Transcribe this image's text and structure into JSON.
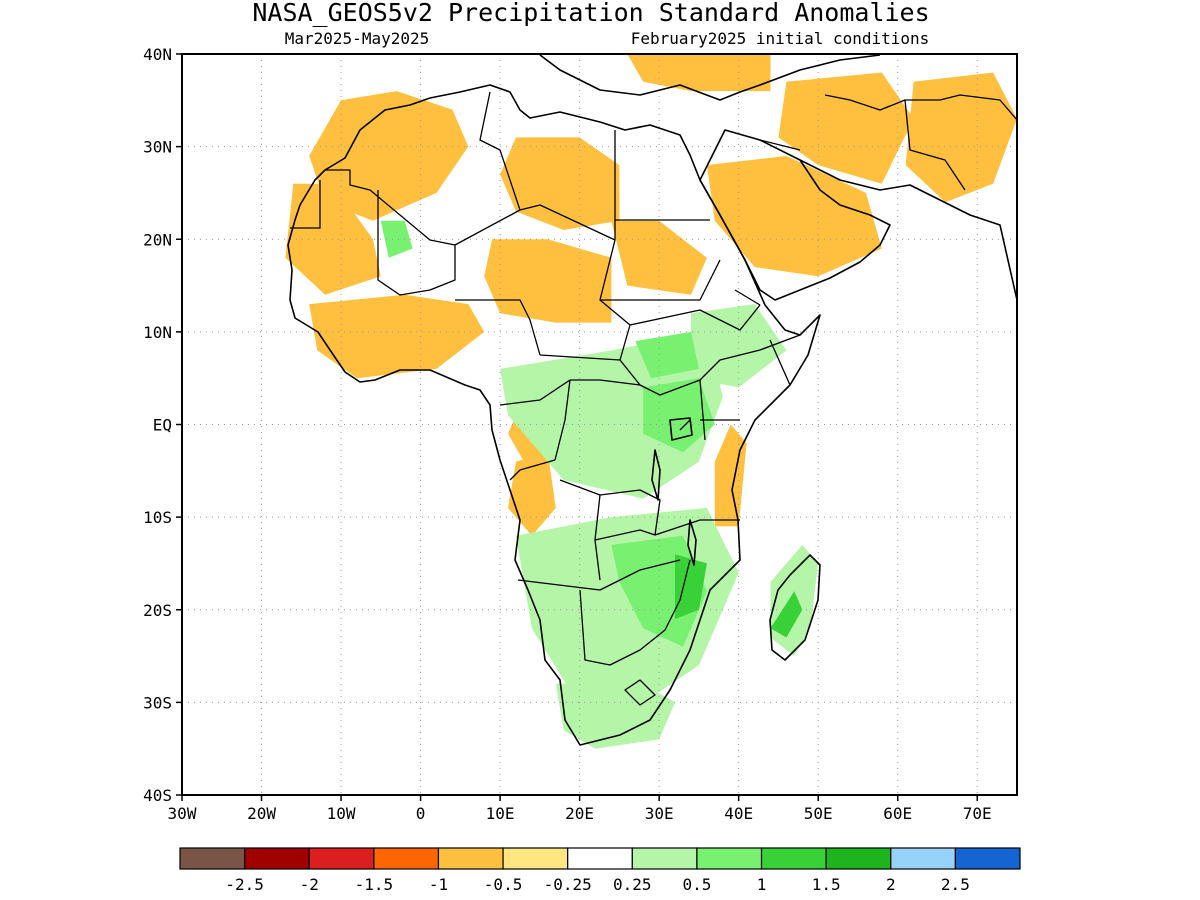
{
  "title": "NASA_GEOS5v2 Precipitation Standard Anomalies",
  "subtitle_left": "Mar2025-May2025",
  "subtitle_right": "February2025 initial conditions",
  "map": {
    "lon_range": [
      -30,
      75
    ],
    "lat_range": [
      -40,
      40
    ],
    "lat_ticks": [
      {
        "value": 40,
        "label": "40N"
      },
      {
        "value": 30,
        "label": "30N"
      },
      {
        "value": 20,
        "label": "20N"
      },
      {
        "value": 10,
        "label": "10N"
      },
      {
        "value": 0,
        "label": "EQ"
      },
      {
        "value": -10,
        "label": "10S"
      },
      {
        "value": -20,
        "label": "20S"
      },
      {
        "value": -30,
        "label": "30S"
      },
      {
        "value": -40,
        "label": "40S"
      }
    ],
    "lon_ticks": [
      {
        "value": -30,
        "label": "30W"
      },
      {
        "value": -20,
        "label": "20W"
      },
      {
        "value": -10,
        "label": "10W"
      },
      {
        "value": 0,
        "label": "0"
      },
      {
        "value": 10,
        "label": "10E"
      },
      {
        "value": 20,
        "label": "20E"
      },
      {
        "value": 30,
        "label": "30E"
      },
      {
        "value": 40,
        "label": "40E"
      },
      {
        "value": 50,
        "label": "50E"
      },
      {
        "value": 60,
        "label": "60E"
      },
      {
        "value": 70,
        "label": "70E"
      }
    ],
    "dotted_grid": true
  },
  "colorbar": {
    "colors": [
      "#7a5547",
      "#a00000",
      "#dc1e1e",
      "#ff6600",
      "#ffc040",
      "#ffe680",
      "#ffffff",
      "#b4f5a8",
      "#78f070",
      "#38d238",
      "#1eb41e",
      "#96d2fa",
      "#1464d2"
    ],
    "labels": [
      "-2.5",
      "-2",
      "-1.5",
      "-1",
      "-0.5",
      "-0.25",
      "0.25",
      "0.5",
      "1",
      "1.5",
      "2",
      "2.5"
    ]
  },
  "anomaly_regions": [
    {
      "name": "nw-sahara-dry",
      "level": "-0.5",
      "color": "#ffc040",
      "lon_lat": [
        [
          -10,
          35
        ],
        [
          -3,
          36
        ],
        [
          4,
          34
        ],
        [
          6,
          30
        ],
        [
          2,
          25
        ],
        [
          -6,
          22
        ],
        [
          -12,
          24
        ],
        [
          -14,
          29
        ]
      ]
    },
    {
      "name": "libya-dry",
      "level": "-0.5",
      "color": "#ffc040",
      "lon_lat": [
        [
          12,
          31
        ],
        [
          20,
          31
        ],
        [
          25,
          28
        ],
        [
          25,
          22
        ],
        [
          18,
          21
        ],
        [
          12,
          23
        ],
        [
          10,
          27
        ]
      ]
    },
    {
      "name": "chad-dry",
      "level": "-0.5",
      "color": "#ffc040",
      "lon_lat": [
        [
          9,
          20
        ],
        [
          16,
          20
        ],
        [
          24,
          18
        ],
        [
          24,
          11
        ],
        [
          17,
          11
        ],
        [
          10,
          12
        ],
        [
          8,
          16
        ]
      ]
    },
    {
      "name": "mauritania-dry",
      "level": "-0.5",
      "color": "#ffc040",
      "lon_lat": [
        [
          -16,
          26
        ],
        [
          -11,
          26
        ],
        [
          -6,
          20
        ],
        [
          -5,
          16
        ],
        [
          -12,
          14
        ],
        [
          -17,
          18
        ]
      ]
    },
    {
      "name": "west-africa-coast-dry",
      "level": "-0.5",
      "color": "#ffc040",
      "lon_lat": [
        [
          -14,
          13
        ],
        [
          -2,
          14
        ],
        [
          6,
          13
        ],
        [
          8,
          10
        ],
        [
          2,
          6
        ],
        [
          -8,
          5
        ],
        [
          -13,
          8
        ]
      ]
    },
    {
      "name": "sudan-dry",
      "level": "-0.5",
      "color": "#ffc040",
      "lon_lat": [
        [
          24,
          22
        ],
        [
          30,
          22
        ],
        [
          36,
          18
        ],
        [
          34,
          14
        ],
        [
          26,
          15
        ]
      ]
    },
    {
      "name": "arabia-dry",
      "level": "-0.5",
      "color": "#ffc040",
      "lon_lat": [
        [
          36,
          28
        ],
        [
          46,
          29
        ],
        [
          56,
          25
        ],
        [
          58,
          19
        ],
        [
          50,
          16
        ],
        [
          42,
          17
        ],
        [
          37,
          22
        ]
      ]
    },
    {
      "name": "iran-dry",
      "level": "-0.5",
      "color": "#ffc040",
      "lon_lat": [
        [
          46,
          37
        ],
        [
          58,
          38
        ],
        [
          62,
          33
        ],
        [
          58,
          26
        ],
        [
          50,
          28
        ],
        [
          45,
          31
        ]
      ]
    },
    {
      "name": "pakistan-dry",
      "level": "-0.5",
      "color": "#ffc040",
      "lon_lat": [
        [
          62,
          37
        ],
        [
          72,
          38
        ],
        [
          75,
          33
        ],
        [
          72,
          26
        ],
        [
          66,
          24
        ],
        [
          61,
          28
        ]
      ]
    },
    {
      "name": "turkey-dry",
      "level": "-0.5",
      "color": "#ffc040",
      "lon_lat": [
        [
          26,
          40
        ],
        [
          44,
          40
        ],
        [
          44,
          36
        ],
        [
          34,
          36
        ],
        [
          28,
          37
        ]
      ]
    },
    {
      "name": "east-africa-dry",
      "level": "-0.5",
      "color": "#ffc040",
      "lon_lat": [
        [
          39,
          0
        ],
        [
          41,
          -2
        ],
        [
          40,
          -11
        ],
        [
          37,
          -11
        ],
        [
          37,
          -4
        ]
      ]
    },
    {
      "name": "angola-dry",
      "level": "-0.5",
      "color": "#ffc040",
      "lon_lat": [
        [
          12,
          -4
        ],
        [
          16,
          -3
        ],
        [
          17,
          -9
        ],
        [
          14,
          -12
        ],
        [
          11,
          -9
        ]
      ]
    },
    {
      "name": "congo-dry",
      "level": "-0.5",
      "color": "#ffc040",
      "lon_lat": [
        [
          12,
          1
        ],
        [
          17,
          1
        ],
        [
          17,
          -3
        ],
        [
          13,
          -4
        ],
        [
          11,
          -1
        ]
      ]
    },
    {
      "name": "central-africa-wet",
      "level": "0.5",
      "color": "#b4f5a8",
      "lon_lat": [
        [
          10,
          6
        ],
        [
          24,
          8
        ],
        [
          36,
          10
        ],
        [
          38,
          3
        ],
        [
          35,
          -4
        ],
        [
          28,
          -8
        ],
        [
          18,
          -6
        ],
        [
          11,
          1
        ]
      ]
    },
    {
      "name": "ethiopia-wet",
      "level": "0.5",
      "color": "#b4f5a8",
      "lon_lat": [
        [
          34,
          12
        ],
        [
          42,
          13
        ],
        [
          46,
          8
        ],
        [
          40,
          4
        ],
        [
          34,
          5
        ]
      ]
    },
    {
      "name": "south-central-wet",
      "level": "0.5",
      "color": "#b4f5a8",
      "lon_lat": [
        [
          12,
          -12
        ],
        [
          24,
          -10
        ],
        [
          36,
          -9
        ],
        [
          40,
          -16
        ],
        [
          35,
          -26
        ],
        [
          28,
          -30
        ],
        [
          19,
          -29
        ],
        [
          14,
          -22
        ]
      ]
    },
    {
      "name": "south-africa-wet",
      "level": "0.5",
      "color": "#b4f5a8",
      "lon_lat": [
        [
          17,
          -28
        ],
        [
          28,
          -28
        ],
        [
          32,
          -30
        ],
        [
          30,
          -34
        ],
        [
          22,
          -35
        ],
        [
          18,
          -33
        ]
      ]
    },
    {
      "name": "madagascar-wet",
      "level": "0.5",
      "color": "#b4f5a8",
      "lon_lat": [
        [
          48,
          -13
        ],
        [
          50,
          -15
        ],
        [
          49,
          -22
        ],
        [
          47,
          -25
        ],
        [
          44,
          -23
        ],
        [
          44,
          -17
        ]
      ]
    },
    {
      "name": "zimbabwe-wet",
      "level": "1",
      "color": "#78f070",
      "lon_lat": [
        [
          24,
          -13
        ],
        [
          33,
          -12
        ],
        [
          36,
          -18
        ],
        [
          33,
          -24
        ],
        [
          28,
          -22
        ],
        [
          25,
          -17
        ]
      ]
    },
    {
      "name": "uganda-wet",
      "level": "1",
      "color": "#78f070",
      "lon_lat": [
        [
          28,
          4
        ],
        [
          35,
          5
        ],
        [
          37,
          0
        ],
        [
          33,
          -3
        ],
        [
          28,
          -1
        ]
      ]
    },
    {
      "name": "south-sudan-wet",
      "level": "1",
      "color": "#78f070",
      "lon_lat": [
        [
          27,
          9
        ],
        [
          34,
          10
        ],
        [
          35,
          6
        ],
        [
          29,
          5
        ]
      ]
    },
    {
      "name": "mozambique-wet",
      "level": "1.5",
      "color": "#38d238",
      "lon_lat": [
        [
          32,
          -14
        ],
        [
          36,
          -15
        ],
        [
          35,
          -20
        ],
        [
          32,
          -21
        ]
      ]
    },
    {
      "name": "madagascar-wet-strong",
      "level": "1.5",
      "color": "#38d238",
      "lon_lat": [
        [
          47,
          -18
        ],
        [
          48,
          -20
        ],
        [
          46,
          -23
        ],
        [
          44,
          -22
        ]
      ]
    },
    {
      "name": "mali-wet",
      "level": "1",
      "color": "#78f070",
      "lon_lat": [
        [
          -5,
          22
        ],
        [
          -2,
          22
        ],
        [
          -1,
          19
        ],
        [
          -4,
          18
        ]
      ]
    }
  ]
}
